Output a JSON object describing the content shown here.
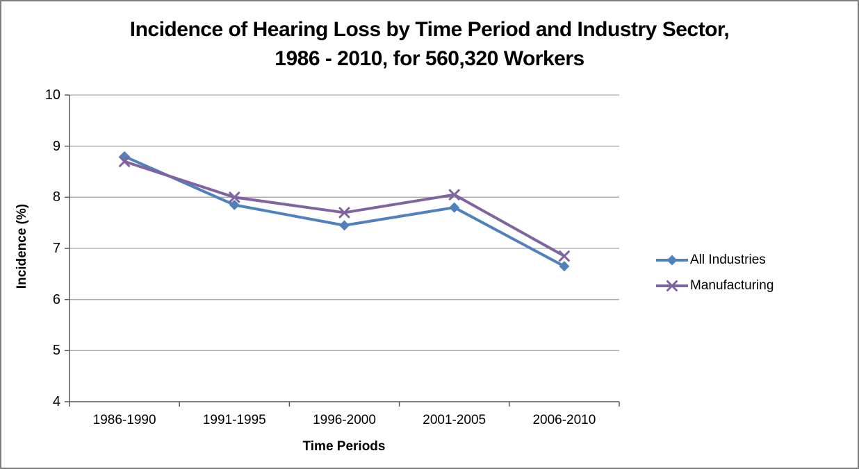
{
  "window": {
    "background": "#FFFFFF",
    "border_color": "#7F7F7F"
  },
  "chart_data": {
    "type": "line",
    "title_line1": "Incidence of Hearing Loss by Time Period and Industry Sector,",
    "title_line2": "1986 - 2010, for 560,320 Workers",
    "categories": [
      "1986-1990",
      "1991-1995",
      "1996-2000",
      "2001-2005",
      "2006-2010"
    ],
    "series": [
      {
        "name": "All Industries",
        "color": "#4F81BD",
        "marker": "diamond",
        "values": [
          8.8,
          7.85,
          7.45,
          7.8,
          6.65
        ]
      },
      {
        "name": "Manufacturing",
        "color": "#8064A2",
        "marker": "x",
        "values": [
          8.7,
          8.0,
          7.7,
          8.05,
          6.85
        ]
      }
    ],
    "xlabel": "Time Periods",
    "ylabel": "Incidence (%)",
    "ylim": [
      4,
      10
    ],
    "yticks": [
      4,
      5,
      6,
      7,
      8,
      9,
      10
    ],
    "grid": "horizontal",
    "legend_position": "right",
    "colors": {
      "gridline": "#A6A6A6",
      "axis": "#595959",
      "text": "#000000"
    }
  }
}
